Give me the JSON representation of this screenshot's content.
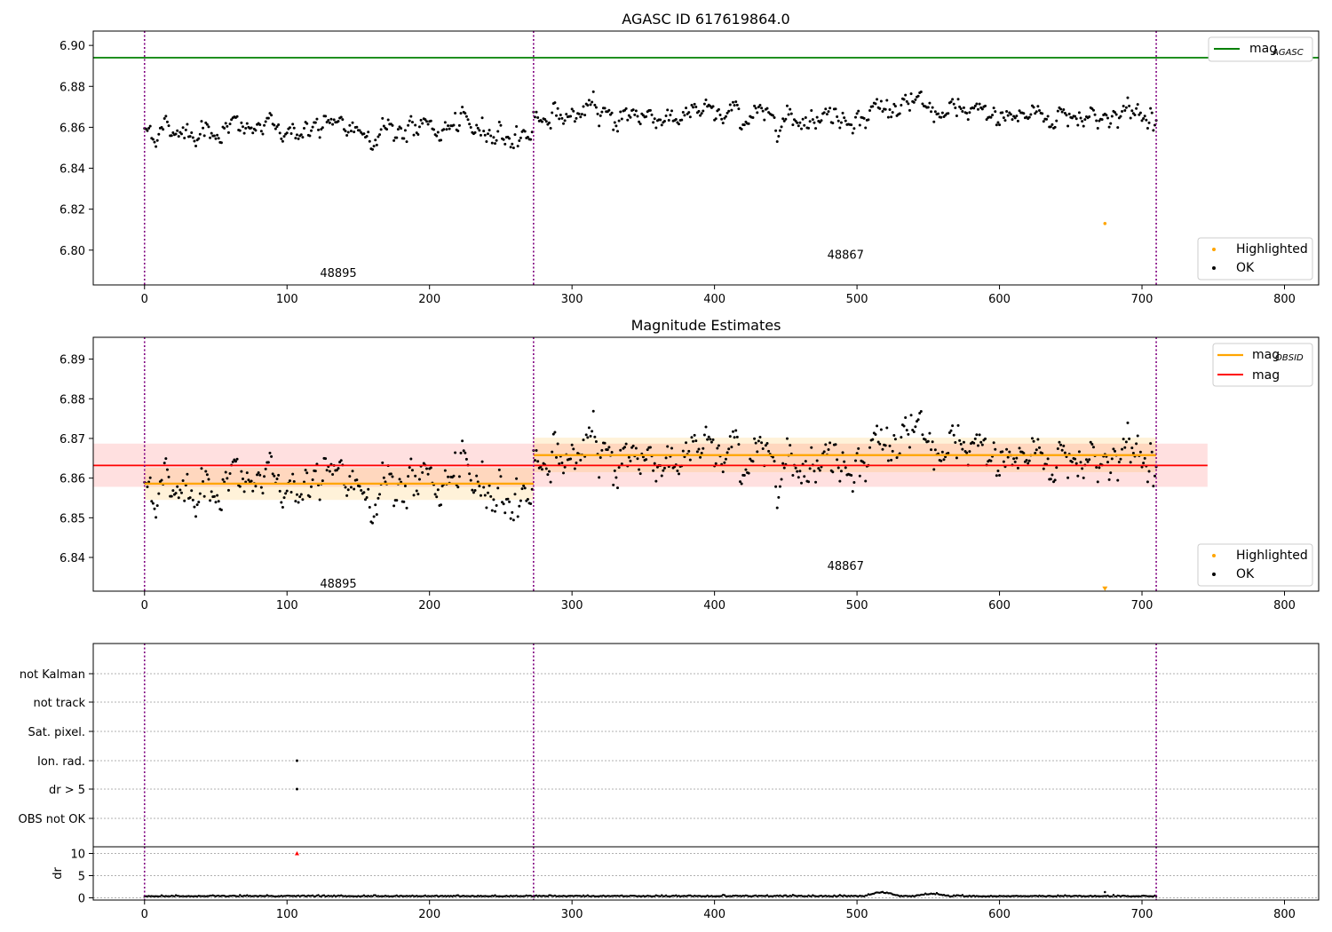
{
  "colors": {
    "ok": "#000000",
    "highlighted": "#ffa500",
    "mag_agasc": "#008000",
    "mag_obsid": "#ffa500",
    "mag": "#ff0000",
    "obsid_boundary": "#800080",
    "gridline": "#b0b0b0"
  },
  "chart_data": [
    {
      "id": "top",
      "type": "scatter",
      "title": "AGASC ID 617619864.0",
      "xlim": [
        -36,
        824
      ],
      "ylim": [
        6.783,
        6.907
      ],
      "xticks": [
        0,
        100,
        200,
        300,
        400,
        500,
        600,
        700,
        800
      ],
      "xtick_labels": [
        "0",
        "100",
        "200",
        "300",
        "400",
        "500",
        "600",
        "700",
        "800"
      ],
      "yticks": [
        6.8,
        6.82,
        6.84,
        6.86,
        6.88,
        6.9
      ],
      "ytick_labels": [
        "6.80",
        "6.82",
        "6.84",
        "6.86",
        "6.88",
        "6.90"
      ],
      "mag_agasc": 6.894,
      "obsid_boundaries": [
        0,
        273,
        710
      ],
      "obsid_labels": [
        {
          "text": "48895",
          "x": 136,
          "y": 6.789
        },
        {
          "text": "48867",
          "x": 492,
          "y": 6.798
        }
      ],
      "highlighted_points": [
        [
          674,
          6.813
        ]
      ],
      "legend_top": [
        {
          "label": "mag",
          "sub": "AGASC",
          "color_key": "mag_agasc"
        }
      ],
      "legend_bottom": [
        {
          "label": "Highlighted",
          "color_key": "highlighted"
        },
        {
          "label": "OK",
          "color_key": "ok"
        }
      ],
      "segments": [
        {
          "obsid": "48895",
          "start": 0,
          "end": 272,
          "mean": 6.8585
        },
        {
          "obsid": "48867",
          "start": 273,
          "end": 710,
          "mean": 6.8655
        }
      ]
    },
    {
      "id": "middle",
      "type": "scatter",
      "title": "Magnitude Estimates",
      "xlim": [
        -36,
        824
      ],
      "ylim": [
        6.8315,
        6.8955
      ],
      "xticks": [
        0,
        100,
        200,
        300,
        400,
        500,
        600,
        700,
        800
      ],
      "xtick_labels": [
        "0",
        "100",
        "200",
        "300",
        "400",
        "500",
        "600",
        "700",
        "800"
      ],
      "yticks": [
        6.84,
        6.85,
        6.86,
        6.87,
        6.88,
        6.89
      ],
      "ytick_labels": [
        "6.84",
        "6.85",
        "6.86",
        "6.87",
        "6.88",
        "6.89"
      ],
      "mag": 6.8632,
      "mag_band": [
        6.8578,
        6.8687
      ],
      "mag_xrange": [
        -36,
        746
      ],
      "mag_obsid": [
        {
          "obsid": "48895",
          "x": [
            0,
            273
          ],
          "value": 6.8586,
          "band": [
            6.8545,
            6.8626
          ]
        },
        {
          "obsid": "48867",
          "x": [
            273,
            710
          ],
          "value": 6.8658,
          "band": [
            6.8615,
            6.8702
          ]
        }
      ],
      "obsid_boundaries": [
        0,
        273,
        710
      ],
      "obsid_labels": [
        {
          "text": "48895",
          "x": 136,
          "y": 6.8335
        },
        {
          "text": "48867",
          "x": 492,
          "y": 6.838
        }
      ],
      "highlighted_marker": {
        "x": 674,
        "y": 6.832
      },
      "legend_top": [
        {
          "label": "mag",
          "sub": "OBSID",
          "color_key": "mag_obsid"
        },
        {
          "label": "mag",
          "sub": "",
          "color_key": "mag"
        }
      ],
      "legend_bottom": [
        {
          "label": "Highlighted",
          "color_key": "highlighted"
        },
        {
          "label": "OK",
          "color_key": "ok"
        }
      ]
    },
    {
      "id": "flags",
      "type": "scatter",
      "xlim": [
        -36,
        824
      ],
      "categories": [
        "not Kalman",
        "not track",
        "Sat. pixel.",
        "Ion. rad.",
        "dr > 5",
        "OBS not OK"
      ],
      "obsid_boundaries": [
        0,
        273,
        710
      ],
      "flag_points": [
        {
          "category": "Ion. rad.",
          "x": 107
        },
        {
          "category": "dr > 5",
          "x": 107
        }
      ]
    },
    {
      "id": "dr",
      "type": "scatter",
      "ylabel": "dr",
      "xlim": [
        -36,
        824
      ],
      "ylim": [
        -0.5,
        11.5
      ],
      "xticks": [
        0,
        100,
        200,
        300,
        400,
        500,
        600,
        700,
        800
      ],
      "xtick_labels": [
        "0",
        "100",
        "200",
        "300",
        "400",
        "500",
        "600",
        "700",
        "800"
      ],
      "yticks": [
        0,
        5,
        10
      ],
      "ytick_labels": [
        "0",
        "5",
        "10"
      ],
      "obsid_boundaries": [
        0,
        273,
        710
      ],
      "outlier_marker": {
        "x": 107,
        "y": 10
      },
      "spike_point": {
        "x": 674,
        "y": 1.3
      },
      "baseline": 0.3
    }
  ]
}
